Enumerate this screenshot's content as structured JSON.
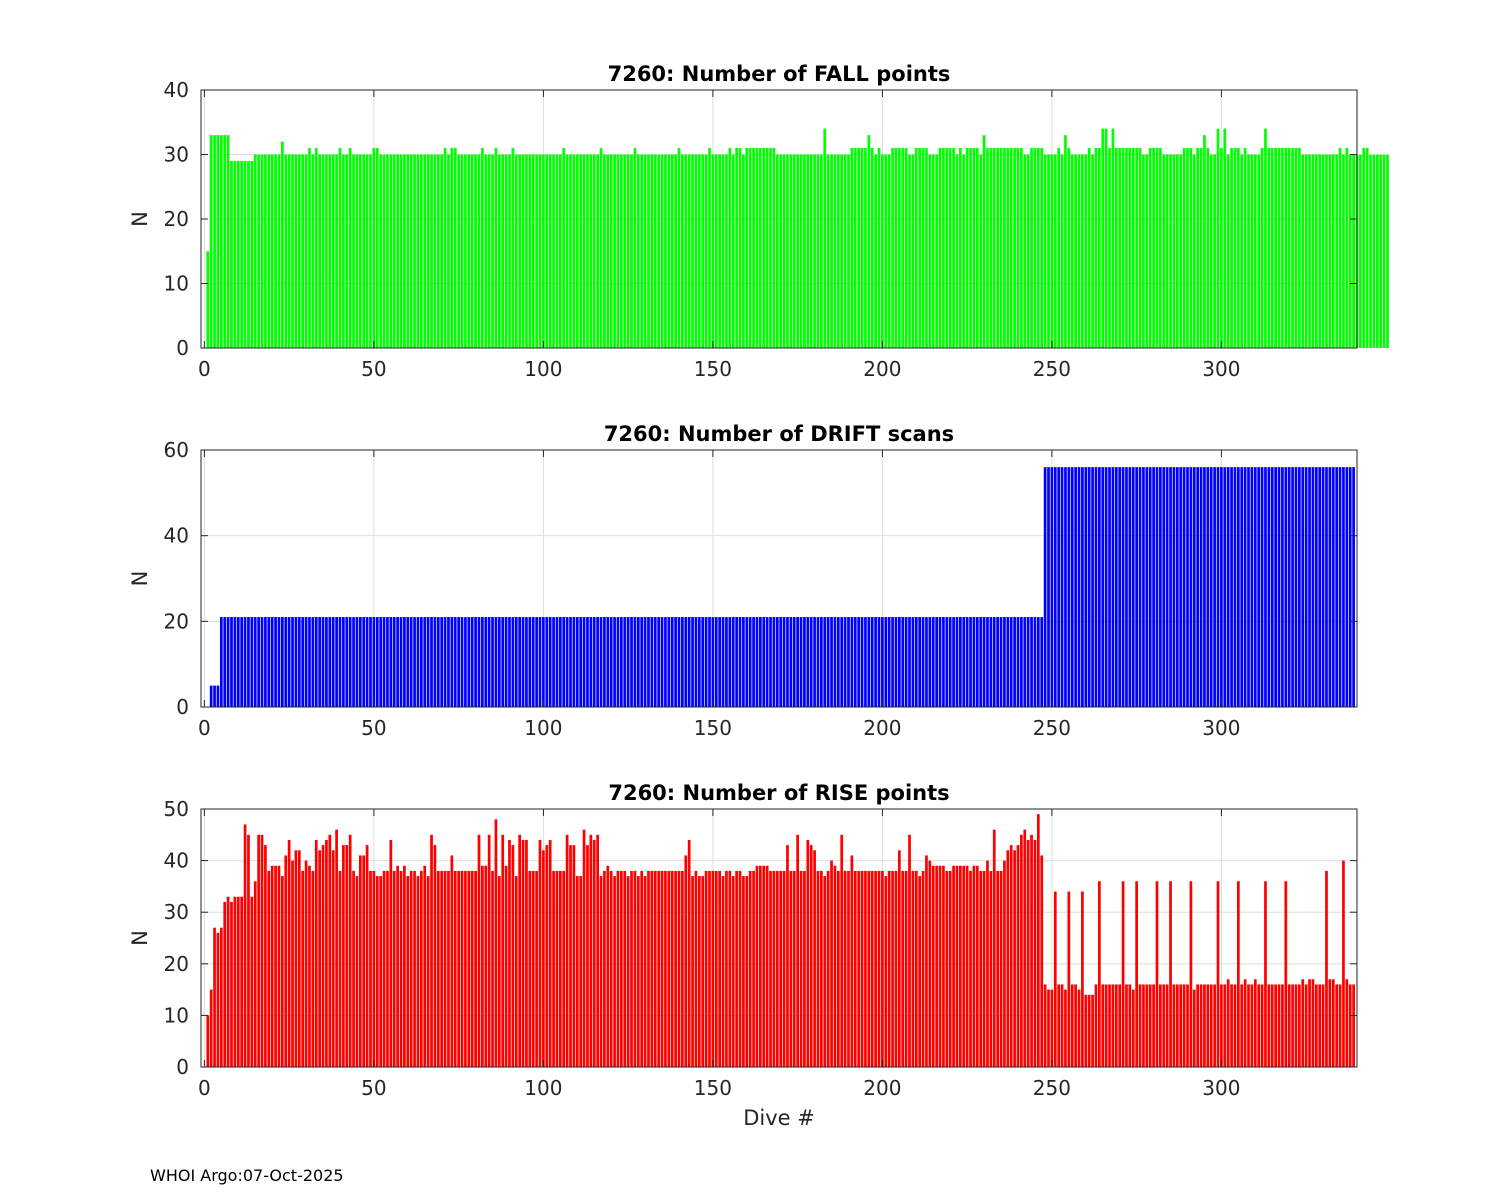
{
  "footer": "WHOI Argo:07-Oct-2025",
  "chart_data": [
    {
      "type": "bar",
      "title": "7260: Number of FALL points",
      "xlabel": "",
      "ylabel": "N",
      "xlim": [
        -1,
        340
      ],
      "ylim": [
        0,
        40
      ],
      "xticks": [
        0,
        50,
        100,
        150,
        200,
        250,
        300
      ],
      "yticks": [
        0,
        10,
        20,
        30,
        40
      ],
      "grid": true,
      "color": "#00ff00",
      "x_start": 1,
      "values": [
        15,
        33,
        33,
        33,
        33,
        33,
        33,
        29,
        29,
        29,
        29,
        29,
        29,
        29,
        30,
        30,
        30,
        30,
        30,
        30,
        30,
        30,
        32,
        30,
        30,
        30,
        30,
        30,
        30,
        30,
        31,
        30,
        31,
        30,
        30,
        30,
        30,
        30,
        30,
        31,
        30,
        30,
        31,
        30,
        30,
        30,
        30,
        30,
        30,
        31,
        31,
        30,
        30,
        30,
        30,
        30,
        30,
        30,
        30,
        30,
        30,
        30,
        30,
        30,
        30,
        30,
        30,
        30,
        30,
        30,
        31,
        30,
        31,
        31,
        30,
        30,
        30,
        30,
        30,
        30,
        30,
        31,
        30,
        30,
        30,
        31,
        30,
        30,
        30,
        30,
        31,
        30,
        30,
        30,
        30,
        30,
        30,
        30,
        30,
        30,
        30,
        30,
        30,
        30,
        30,
        31,
        30,
        30,
        30,
        30,
        30,
        30,
        30,
        30,
        30,
        30,
        31,
        30,
        30,
        30,
        30,
        30,
        30,
        30,
        30,
        30,
        31,
        30,
        30,
        30,
        30,
        30,
        30,
        30,
        30,
        30,
        30,
        30,
        30,
        31,
        30,
        30,
        30,
        30,
        30,
        30,
        30,
        30,
        31,
        30,
        30,
        30,
        30,
        30,
        31,
        30,
        31,
        31,
        30,
        31,
        31,
        31,
        31,
        31,
        31,
        31,
        31,
        31,
        30,
        30,
        30,
        30,
        30,
        30,
        30,
        30,
        30,
        30,
        30,
        30,
        30,
        30,
        34,
        30,
        30,
        30,
        30,
        30,
        30,
        30,
        31,
        31,
        31,
        31,
        31,
        33,
        31,
        30,
        31,
        30,
        30,
        30,
        31,
        31,
        31,
        31,
        31,
        30,
        30,
        31,
        31,
        31,
        31,
        30,
        30,
        30,
        31,
        31,
        31,
        31,
        31,
        30,
        31,
        30,
        31,
        31,
        31,
        31,
        30,
        33,
        31,
        31,
        31,
        31,
        31,
        31,
        31,
        31,
        31,
        31,
        31,
        30,
        30,
        31,
        31,
        31,
        31,
        30,
        30,
        30,
        30,
        31,
        30,
        33,
        31,
        30,
        30,
        30,
        30,
        30,
        31,
        30,
        31,
        31,
        34,
        34,
        31,
        34,
        31,
        31,
        31,
        31,
        31,
        31,
        31,
        31,
        30,
        30,
        31,
        31,
        31,
        31,
        30,
        30,
        30,
        30,
        30,
        30,
        31,
        31,
        31,
        30,
        31,
        31,
        33,
        31,
        30,
        30,
        34,
        31,
        34,
        30,
        31,
        31,
        31,
        30,
        31,
        30,
        30,
        30,
        30,
        31,
        34,
        31,
        31,
        31,
        31,
        31,
        31,
        31,
        31,
        31,
        31,
        30,
        30,
        30,
        30,
        30,
        30,
        30,
        30,
        30,
        30,
        30,
        31,
        30,
        31,
        30,
        30,
        30,
        30,
        31,
        31,
        30,
        30,
        30,
        30,
        30,
        30
      ]
    },
    {
      "type": "bar",
      "title": "7260: Number of DRIFT scans",
      "xlabel": "",
      "ylabel": "N",
      "xlim": [
        -1,
        340
      ],
      "ylim": [
        0,
        60
      ],
      "xticks": [
        0,
        50,
        100,
        150,
        200,
        250,
        300
      ],
      "yticks": [
        0,
        20,
        40,
        60
      ],
      "grid": true,
      "color": "#0000ff",
      "x_start": 1,
      "segments": [
        {
          "from": 1,
          "to": 1,
          "value": 0
        },
        {
          "from": 2,
          "to": 4,
          "value": 5
        },
        {
          "from": 5,
          "to": 247,
          "value": 21
        },
        {
          "from": 248,
          "to": 339,
          "value": 56
        }
      ]
    },
    {
      "type": "bar",
      "title": "7260: Number of RISE points",
      "xlabel": "Dive #",
      "ylabel": "N",
      "xlim": [
        -1,
        340
      ],
      "ylim": [
        0,
        50
      ],
      "xticks": [
        0,
        50,
        100,
        150,
        200,
        250,
        300
      ],
      "yticks": [
        0,
        10,
        20,
        30,
        40,
        50
      ],
      "grid": true,
      "color": "#ff0000",
      "x_start": 1,
      "values": [
        10,
        15,
        27,
        26,
        27,
        32,
        33,
        32,
        33,
        33,
        33,
        47,
        45,
        33,
        36,
        45,
        45,
        43,
        38,
        39,
        39,
        39,
        37,
        41,
        44,
        40,
        42,
        42,
        38,
        40,
        39,
        38,
        44,
        42,
        43,
        44,
        45,
        42,
        46,
        38,
        43,
        43,
        45,
        38,
        37,
        41,
        41,
        43,
        38,
        38,
        37,
        37,
        38,
        38,
        44,
        38,
        39,
        38,
        39,
        37,
        38,
        38,
        37,
        38,
        39,
        37,
        45,
        43,
        38,
        38,
        38,
        38,
        41,
        38,
        38,
        38,
        38,
        38,
        38,
        38,
        45,
        39,
        39,
        45,
        38,
        48,
        37,
        45,
        39,
        44,
        43,
        37,
        45,
        44,
        44,
        38,
        38,
        38,
        44,
        42,
        43,
        44,
        38,
        38,
        38,
        38,
        45,
        43,
        43,
        37,
        37,
        46,
        43,
        45,
        44,
        45,
        37,
        38,
        39,
        38,
        37,
        38,
        38,
        38,
        37,
        38,
        38,
        37,
        38,
        37,
        38,
        38,
        38,
        38,
        38,
        38,
        38,
        38,
        38,
        38,
        38,
        41,
        44,
        37,
        38,
        37,
        37,
        38,
        38,
        38,
        38,
        38,
        37,
        38,
        38,
        37,
        38,
        38,
        37,
        37,
        38,
        38,
        39,
        39,
        39,
        39,
        38,
        38,
        38,
        38,
        38,
        43,
        38,
        38,
        45,
        38,
        38,
        44,
        43,
        42,
        38,
        38,
        37,
        38,
        40,
        39,
        38,
        45,
        38,
        38,
        41,
        38,
        38,
        38,
        38,
        38,
        38,
        38,
        38,
        38,
        37,
        38,
        38,
        38,
        42,
        38,
        38,
        45,
        38,
        38,
        37,
        38,
        41,
        40,
        39,
        39,
        39,
        39,
        38,
        38,
        39,
        39,
        39,
        39,
        39,
        38,
        39,
        39,
        38,
        38,
        40,
        38,
        46,
        38,
        38,
        40,
        42,
        43,
        42,
        43,
        45,
        46,
        44,
        45,
        44,
        49,
        41,
        16,
        15,
        15,
        34,
        16,
        16,
        15,
        34,
        16,
        16,
        15,
        34,
        14,
        14,
        14,
        16,
        36,
        16,
        16,
        16,
        16,
        16,
        16,
        36,
        16,
        16,
        15,
        36,
        16,
        16,
        16,
        16,
        16,
        36,
        16,
        16,
        16,
        36,
        16,
        16,
        16,
        16,
        16,
        36,
        15,
        16,
        16,
        16,
        16,
        16,
        16,
        36,
        16,
        16,
        17,
        16,
        16,
        36,
        16,
        17,
        16,
        16,
        17,
        16,
        16,
        36,
        16,
        16,
        16,
        16,
        16,
        36,
        16,
        16,
        16,
        16,
        17,
        16,
        17,
        17,
        16,
        16,
        16,
        38,
        17,
        17,
        16,
        16,
        40,
        17,
        16,
        16
      ]
    }
  ]
}
